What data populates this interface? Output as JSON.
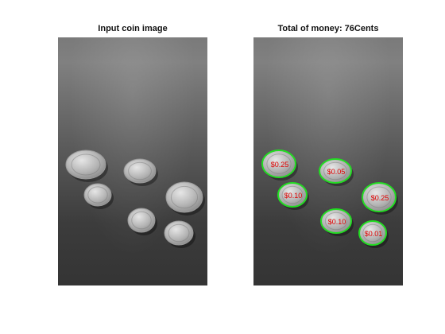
{
  "left_panel": {
    "title": "Input coin image"
  },
  "right_panel": {
    "title": "Total of money: 76Cents",
    "outline_color": "#22dd22",
    "label_color": "#e00000",
    "coins": [
      {
        "label": "$0.25"
      },
      {
        "label": "$0.05"
      },
      {
        "label": "$0.10"
      },
      {
        "label": "$0.25"
      },
      {
        "label": "$0.10"
      },
      {
        "label": "$0.01"
      }
    ]
  }
}
